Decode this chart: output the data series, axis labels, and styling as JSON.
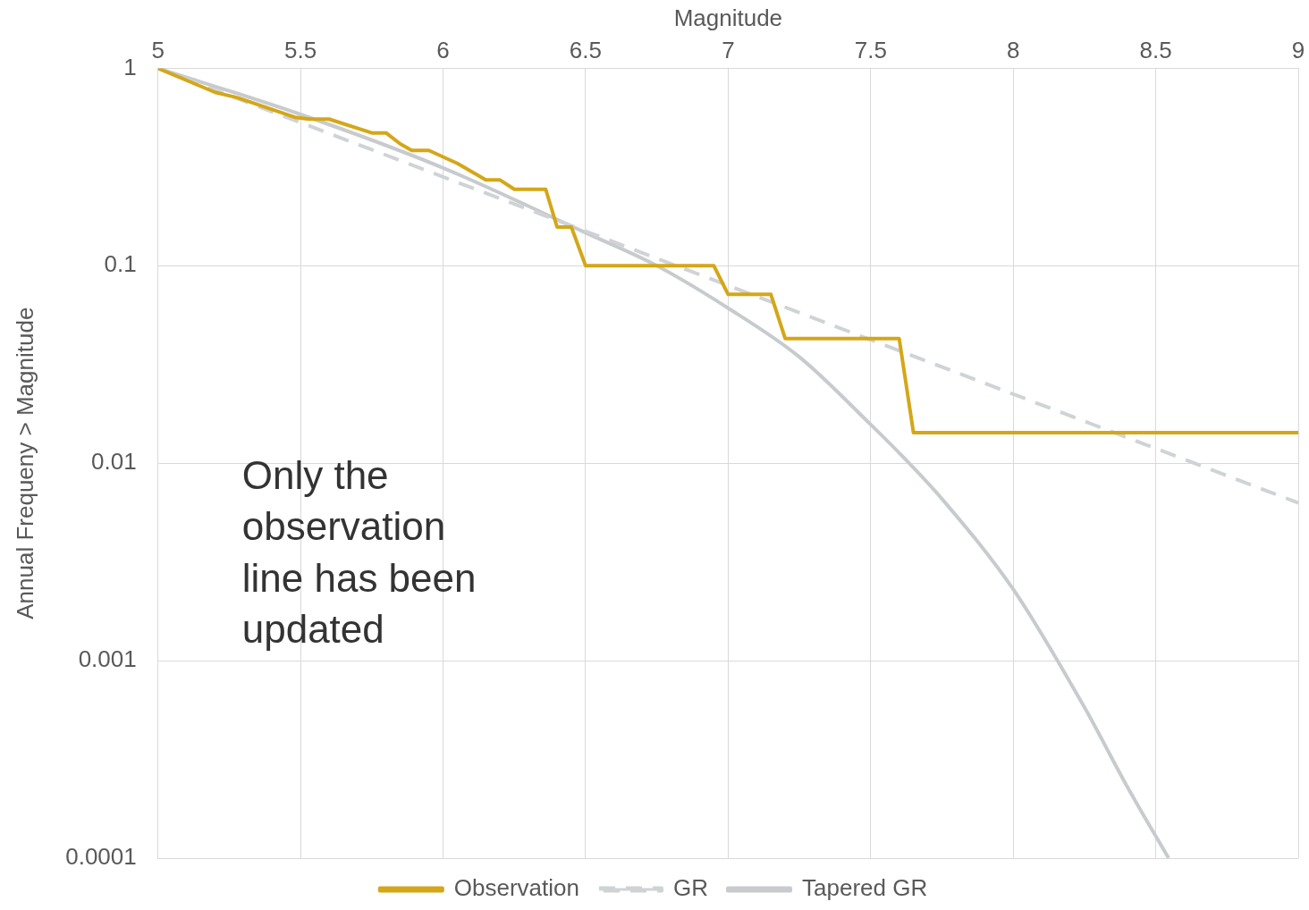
{
  "chart_data": {
    "type": "line",
    "xlabel": "Magnitude",
    "ylabel": "Annual Frequeny > Magnitude",
    "xlim": [
      5,
      9
    ],
    "xticks": [
      5,
      5.5,
      6,
      6.5,
      7,
      7.5,
      8,
      8.5,
      9
    ],
    "ylim": [
      0.0001,
      1
    ],
    "yticks": [
      0.0001,
      0.001,
      0.01,
      0.1,
      1
    ],
    "log": "y",
    "grid": true,
    "legend": "bottom",
    "marker": "none",
    "annotations": [
      "Only the observation line has been updated"
    ],
    "series": [
      {
        "name": "Observation",
        "color": "#d4a718",
        "line_style": "solid",
        "x": [
          5,
          5.2,
          5.28,
          5.48,
          5.53,
          5.6,
          5.75,
          5.8,
          5.85,
          5.89,
          5.95,
          6.05,
          6.15,
          6.2,
          6.25,
          6.36,
          6.4,
          6.45,
          6.5,
          6.95,
          7.0,
          7.15,
          7.2,
          7.6,
          7.65,
          9
        ],
        "values": [
          1,
          0.756,
          0.709,
          0.565,
          0.553,
          0.553,
          0.471,
          0.471,
          0.414,
          0.384,
          0.384,
          0.33,
          0.272,
          0.272,
          0.244,
          0.244,
          0.157,
          0.157,
          0.1,
          0.1,
          0.0716,
          0.0716,
          0.0428,
          0.0428,
          0.0143,
          0.0143
        ]
      },
      {
        "name": "GR",
        "color": "#d0d3d6",
        "line_style": "dashed",
        "x": [
          5,
          6,
          7,
          8,
          9
        ],
        "values": [
          1,
          0.282,
          0.0794,
          0.0224,
          0.0063
        ]
      },
      {
        "name": "Tapered GR",
        "color": "#c8cbce",
        "line_style": "solid",
        "x": [
          5,
          5.5,
          6,
          6.5,
          6.75,
          7,
          7.25,
          7.5,
          7.65,
          7.75,
          8,
          8.25,
          8.4,
          8.545
        ],
        "values": [
          1,
          0.584,
          0.313,
          0.147,
          0.1,
          0.061,
          0.0345,
          0.0157,
          0.0095,
          0.0066,
          0.0023,
          0.00058,
          0.00023,
          0.0001
        ]
      }
    ]
  }
}
